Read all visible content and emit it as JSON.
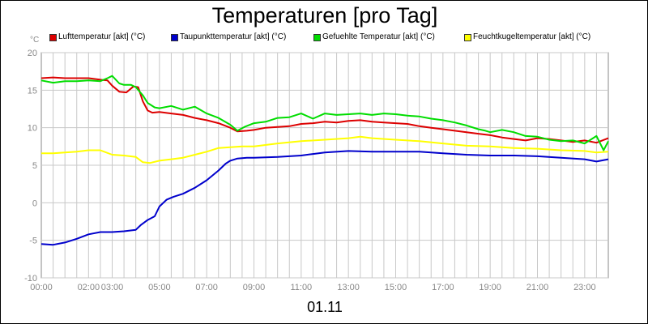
{
  "chart_data": {
    "type": "line",
    "title": "Temperaturen [pro Tag]",
    "ylabel": "°C",
    "xlabel": "01.11",
    "ylim": [
      -10,
      20
    ],
    "xlim": [
      0,
      24
    ],
    "grid": true,
    "legend_position": "top",
    "y_ticks": [
      -10,
      -5,
      0,
      5,
      10,
      15,
      20
    ],
    "x_ticks": [
      {
        "x": 0,
        "label": "00:00"
      },
      {
        "x": 2,
        "label": "02:00"
      },
      {
        "x": 3,
        "label": "03:00"
      },
      {
        "x": 5,
        "label": "05:00"
      },
      {
        "x": 7,
        "label": "07:00"
      },
      {
        "x": 9,
        "label": "09:00"
      },
      {
        "x": 11,
        "label": "11:00"
      },
      {
        "x": 13,
        "label": "13:00"
      },
      {
        "x": 15,
        "label": "15:00"
      },
      {
        "x": 17,
        "label": "17:00"
      },
      {
        "x": 19,
        "label": "19:00"
      },
      {
        "x": 21,
        "label": "21:00"
      },
      {
        "x": 23,
        "label": "23:00"
      }
    ],
    "series": [
      {
        "name": "Lufttemperatur [akt] (°C)",
        "color": "#dd0000",
        "x": [
          0,
          0.5,
          1,
          1.5,
          2,
          2.5,
          2.8,
          3.0,
          3.3,
          3.6,
          3.9,
          4.1,
          4.3,
          4.5,
          4.7,
          5.0,
          5.5,
          6.0,
          6.5,
          7.0,
          7.5,
          8.0,
          8.3,
          8.7,
          9.0,
          9.5,
          10,
          10.5,
          11,
          11.5,
          12,
          12.5,
          13,
          13.5,
          14,
          14.5,
          15,
          15.5,
          16,
          16.5,
          17,
          17.5,
          18,
          18.5,
          19,
          19.5,
          20,
          20.5,
          21,
          21.5,
          22,
          22.5,
          23,
          23.5,
          24
        ],
        "y": [
          16.6,
          16.7,
          16.6,
          16.6,
          16.6,
          16.4,
          16.3,
          15.6,
          14.8,
          14.7,
          15.5,
          15.4,
          13.5,
          12.3,
          12.0,
          12.1,
          11.9,
          11.7,
          11.3,
          11.0,
          10.6,
          10.0,
          9.5,
          9.6,
          9.7,
          10.0,
          10.1,
          10.2,
          10.5,
          10.6,
          10.8,
          10.7,
          10.9,
          11.0,
          10.8,
          10.7,
          10.6,
          10.5,
          10.2,
          10.0,
          9.8,
          9.6,
          9.4,
          9.2,
          9.0,
          8.7,
          8.5,
          8.3,
          8.6,
          8.5,
          8.3,
          8.1,
          8.3,
          8.0,
          8.6
        ]
      },
      {
        "name": "Taupunkttemperatur [akt] (°C)",
        "color": "#0000cc",
        "x": [
          0,
          0.5,
          1,
          1.5,
          2,
          2.5,
          3,
          3.5,
          4,
          4.2,
          4.5,
          4.8,
          5.0,
          5.3,
          5.6,
          6.0,
          6.5,
          7.0,
          7.5,
          7.8,
          8.0,
          8.3,
          8.7,
          9,
          10,
          11,
          11.5,
          12,
          13,
          14,
          15,
          15.5,
          16,
          17,
          18,
          19,
          20,
          21,
          22,
          23,
          23.5,
          24
        ],
        "y": [
          -5.5,
          -5.6,
          -5.3,
          -4.8,
          -4.2,
          -3.9,
          -3.9,
          -3.8,
          -3.6,
          -3.0,
          -2.3,
          -1.8,
          -0.5,
          0.4,
          0.8,
          1.2,
          2.0,
          3.0,
          4.3,
          5.2,
          5.6,
          5.9,
          6.0,
          6.0,
          6.1,
          6.3,
          6.5,
          6.7,
          6.9,
          6.8,
          6.8,
          6.8,
          6.8,
          6.6,
          6.4,
          6.3,
          6.3,
          6.2,
          6.0,
          5.8,
          5.5,
          5.8
        ]
      },
      {
        "name": "Gefuehlte Temperatur [akt] (°C)",
        "color": "#00dd00",
        "x": [
          0,
          0.5,
          1,
          1.5,
          2,
          2.5,
          2.8,
          3.0,
          3.3,
          3.5,
          3.8,
          4.0,
          4.3,
          4.5,
          4.8,
          5.0,
          5.5,
          6.0,
          6.5,
          7.0,
          7.5,
          8.0,
          8.3,
          8.6,
          9,
          9.5,
          10,
          10.5,
          11,
          11.5,
          12,
          12.5,
          13,
          13.5,
          14,
          14.5,
          15,
          15.5,
          16,
          16.5,
          17,
          17.5,
          18,
          18.5,
          18.8,
          19,
          19.5,
          20,
          20.5,
          21,
          21.5,
          22,
          22.5,
          23,
          23.5,
          23.8,
          24
        ],
        "y": [
          16.3,
          16.0,
          16.2,
          16.2,
          16.3,
          16.2,
          16.6,
          16.9,
          15.9,
          15.7,
          15.7,
          15.4,
          14.3,
          13.3,
          12.7,
          12.6,
          12.9,
          12.4,
          12.8,
          11.9,
          11.3,
          10.4,
          9.6,
          10.1,
          10.6,
          10.8,
          11.3,
          11.4,
          11.9,
          11.2,
          11.9,
          11.7,
          11.8,
          11.9,
          11.7,
          11.9,
          11.8,
          11.6,
          11.5,
          11.2,
          11.0,
          10.7,
          10.3,
          9.8,
          9.6,
          9.4,
          9.7,
          9.4,
          8.9,
          8.8,
          8.4,
          8.2,
          8.3,
          7.9,
          8.9,
          7.0,
          8.2
        ]
      },
      {
        "name": "Feuchtkugeltemperatur [akt] (°C)",
        "color": "#ffff00",
        "x": [
          0,
          0.5,
          1,
          1.5,
          2,
          2.5,
          3,
          3.5,
          4,
          4.3,
          4.6,
          5.0,
          5.5,
          6,
          6.5,
          7,
          7.5,
          8,
          8.5,
          9,
          10,
          11,
          12,
          13,
          13.5,
          14,
          15,
          16,
          17,
          18,
          19,
          20,
          21,
          22,
          23,
          23.5,
          24
        ],
        "y": [
          6.6,
          6.6,
          6.7,
          6.8,
          7.0,
          7.0,
          6.4,
          6.3,
          6.1,
          5.4,
          5.3,
          5.6,
          5.8,
          6.0,
          6.4,
          6.8,
          7.3,
          7.4,
          7.5,
          7.5,
          7.9,
          8.2,
          8.4,
          8.6,
          8.8,
          8.6,
          8.4,
          8.2,
          7.9,
          7.6,
          7.5,
          7.3,
          7.2,
          7.0,
          6.9,
          6.7,
          6.8
        ]
      }
    ]
  }
}
